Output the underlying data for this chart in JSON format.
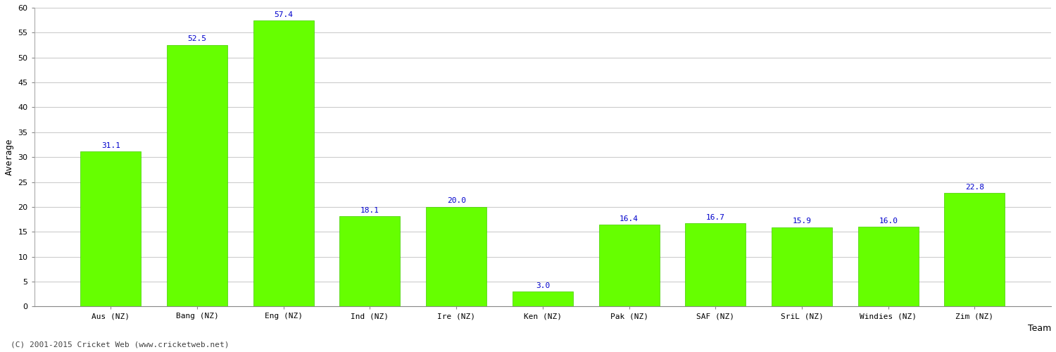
{
  "categories": [
    "Aus (NZ)",
    "Bang (NZ)",
    "Eng (NZ)",
    "Ind (NZ)",
    "Ire (NZ)",
    "Ken (NZ)",
    "Pak (NZ)",
    "SAF (NZ)",
    "SriL (NZ)",
    "Windies (NZ)",
    "Zim (NZ)"
  ],
  "values": [
    31.1,
    52.5,
    57.4,
    18.1,
    20.0,
    3.0,
    16.4,
    16.7,
    15.9,
    16.0,
    22.8
  ],
  "bar_color": "#66ff00",
  "label_color": "#0000cc",
  "xlabel": "Team",
  "ylabel": "Average",
  "ylim": [
    0,
    60
  ],
  "yticks": [
    0,
    5,
    10,
    15,
    20,
    25,
    30,
    35,
    40,
    45,
    50,
    55,
    60
  ],
  "grid_color": "#cccccc",
  "background_color": "#ffffff",
  "footer": "(C) 2001-2015 Cricket Web (www.cricketweb.net)",
  "bar_edge_color": "#44cc00",
  "label_fontsize": 8,
  "axis_label_fontsize": 9,
  "tick_fontsize": 8,
  "footer_fontsize": 8
}
